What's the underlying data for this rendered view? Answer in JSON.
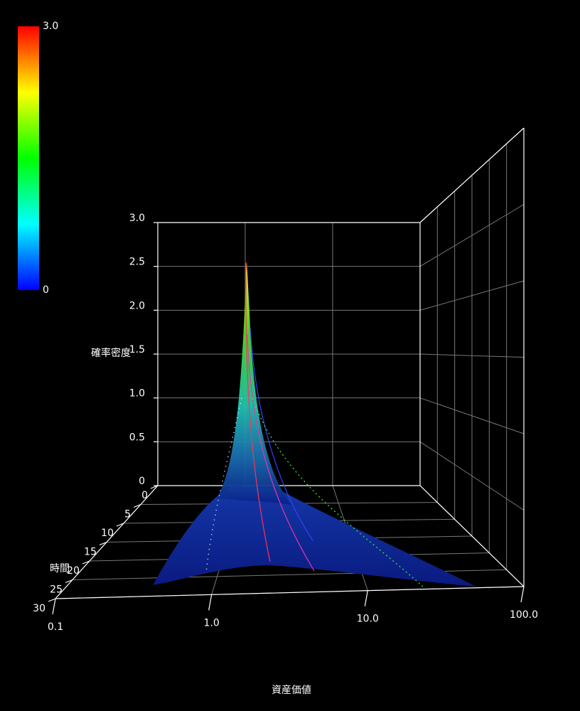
{
  "chart_data": {
    "type": "surface3d",
    "xlabel": "資産価値",
    "ylabel": "時間",
    "zlabel": "確率密度",
    "xscale": "log",
    "xlim": [
      0.1,
      100
    ],
    "xticks": [
      0.1,
      {
        "value": 1,
        "label": "1.0"
      },
      {
        "value": 10,
        "label": "10.0"
      },
      {
        "value": 100,
        "label": "100.0"
      }
    ],
    "ylim": [
      0,
      30
    ],
    "yticks": [
      0,
      5,
      10,
      15,
      20,
      25,
      30
    ],
    "zlim": [
      0,
      3
    ],
    "zticks": [
      0,
      0.5,
      {
        "value": 1,
        "label": "1.0"
      },
      1.5,
      {
        "value": 2,
        "label": "2.0"
      },
      2.5,
      {
        "value": 3,
        "label": "3.0"
      }
    ],
    "grid": true,
    "colorbar": {
      "colors": [
        "#0000ff",
        "#00ffff",
        "#00ff00",
        "#ffff00",
        "#ff0000"
      ],
      "ticks": [
        0,
        {
          "value": 3,
          "label": "3.0"
        }
      ],
      "lim": [
        0,
        3
      ]
    }
  }
}
